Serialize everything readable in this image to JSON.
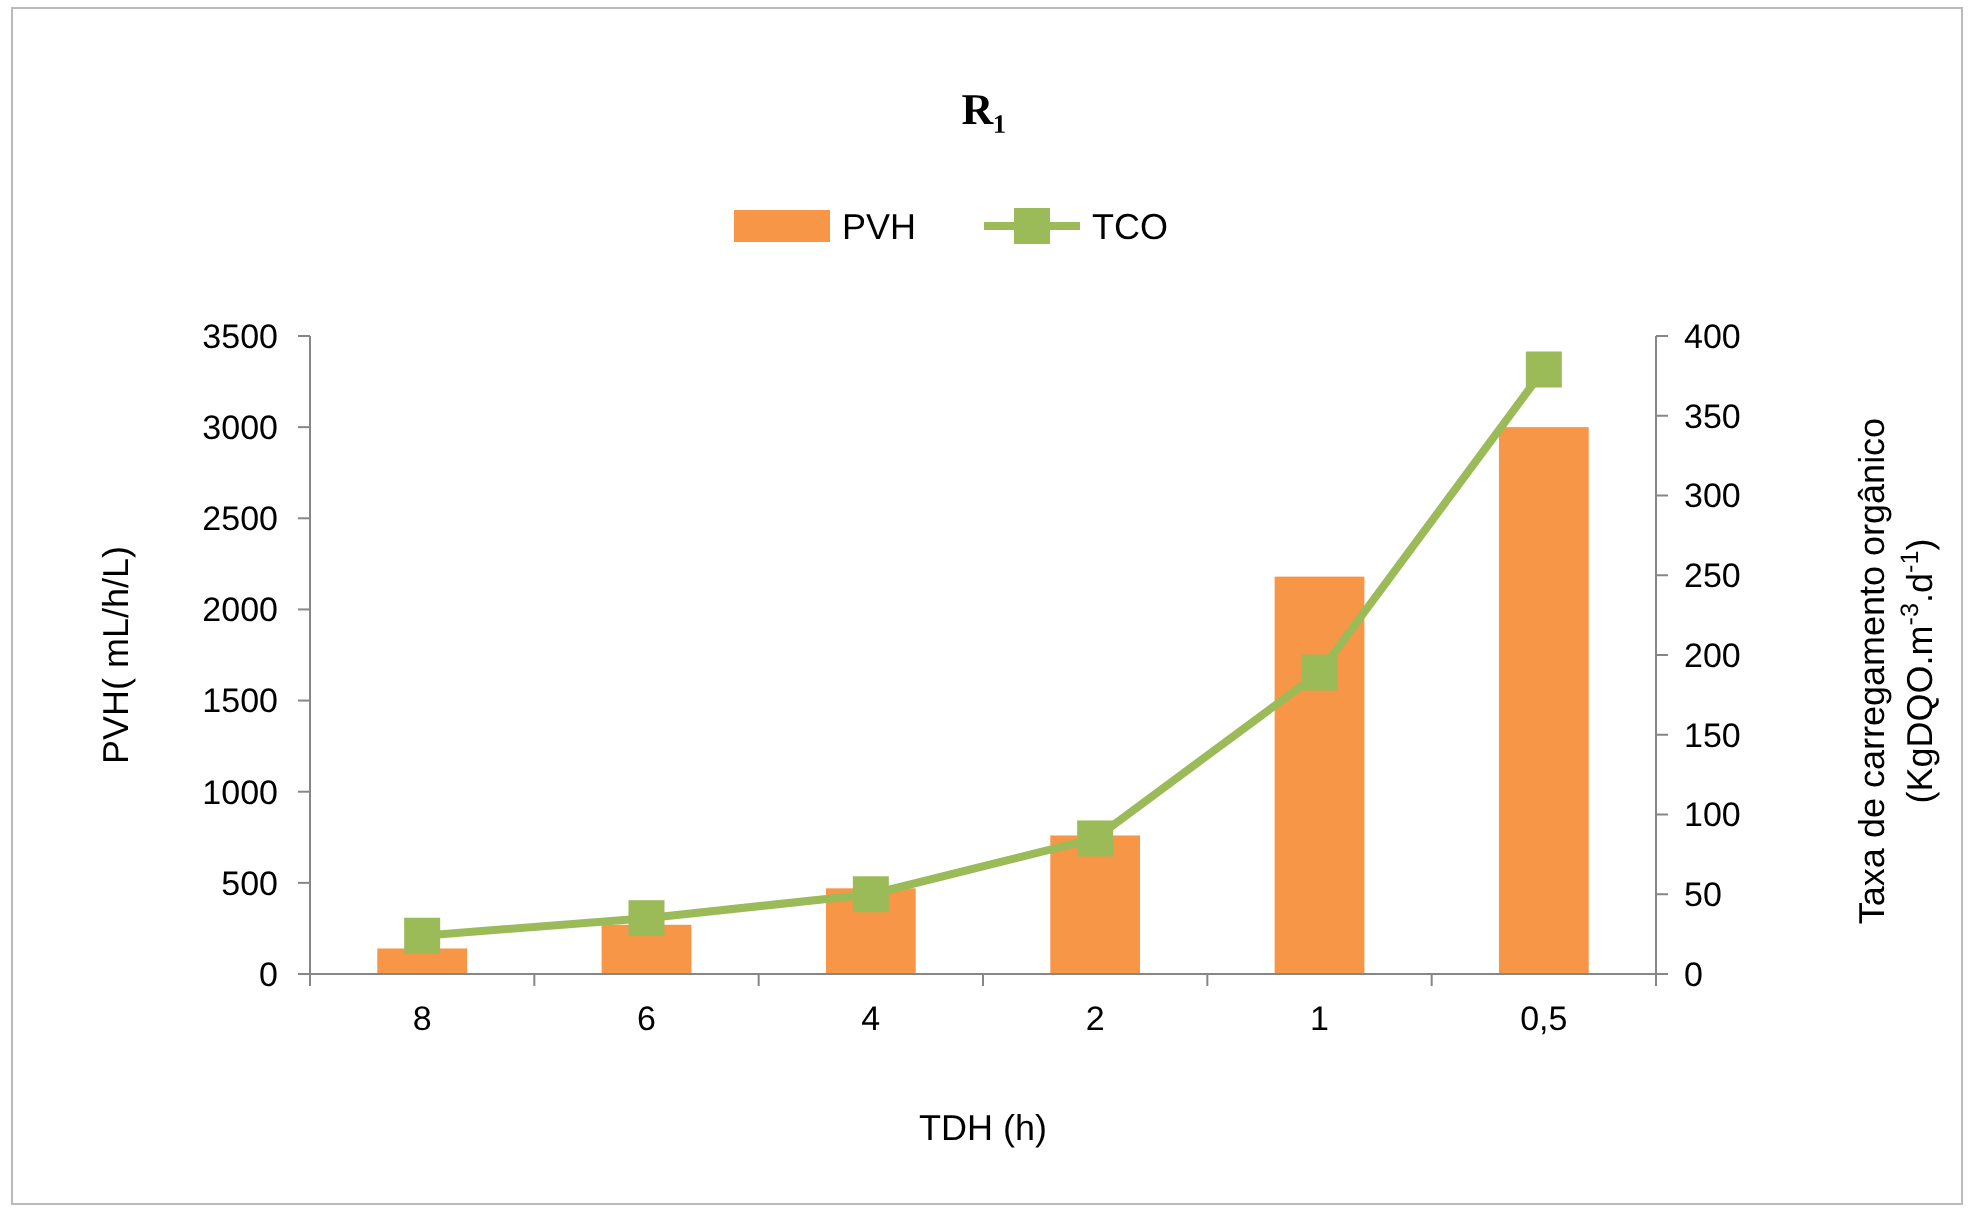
{
  "chart_data": {
    "type": "bar",
    "title": "R₁",
    "xlabel": "TDH (h)",
    "ylabel": "PVH( mL/h/L)",
    "y2label": "Taxa de carregamento orgânico\n(KgDQO.m$^{-3}$.d$^{-1}$)",
    "categories": [
      "8",
      "6",
      "4",
      "2",
      "1",
      "0,5"
    ],
    "series": [
      {
        "name": "PVH",
        "color": "#f79646",
        "values": [
          140,
          270,
          470,
          760,
          2180,
          3000
        ]
      },
      {
        "name": "TCO",
        "type": "line",
        "axis": "y2",
        "color": "#9bbb59",
        "marker": "square",
        "values": [
          24,
          35,
          50,
          85,
          189,
          379
        ]
      }
    ],
    "ylim": [
      0,
      3500
    ],
    "yticks": [
      0,
      500,
      1000,
      1500,
      2000,
      2500,
      3000,
      3500
    ],
    "y2lim": [
      0,
      400
    ],
    "y2ticks": [
      0,
      50,
      100,
      150,
      200,
      250,
      300,
      350,
      400
    ],
    "grid": false,
    "legend": "top"
  }
}
